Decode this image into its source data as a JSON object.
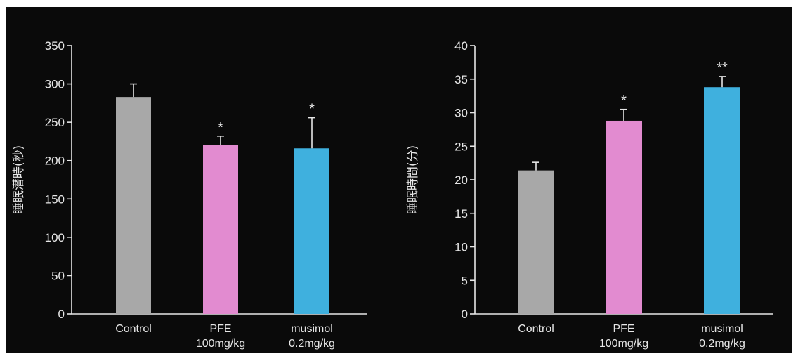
{
  "colors": {
    "background": "#0a0a0a",
    "axis": "#e6e6e6",
    "control": "#a8a8a8",
    "pfe": "#e28bd0",
    "musimol": "#3fb0de"
  },
  "chart_data": [
    {
      "type": "bar",
      "ylabel": "睡眠潜時(秒)",
      "ylim": [
        0,
        350
      ],
      "yticks": [
        0,
        50,
        100,
        150,
        200,
        250,
        300,
        350
      ],
      "categories": [
        {
          "line1": "Control",
          "line2": ""
        },
        {
          "line1": "PFE",
          "line2": "100mg/kg"
        },
        {
          "line1": "musimol",
          "line2": "0.2mg/kg"
        }
      ],
      "values": [
        283,
        220,
        216
      ],
      "error_upper": [
        300,
        232,
        256
      ],
      "significance": [
        "",
        "*",
        "*"
      ],
      "bar_colors": [
        "#a8a8a8",
        "#e28bd0",
        "#3fb0de"
      ],
      "grid": false,
      "legend": "none"
    },
    {
      "type": "bar",
      "ylabel": "睡眠時間(分)",
      "ylim": [
        0,
        40
      ],
      "yticks": [
        0,
        5,
        10,
        15,
        20,
        25,
        30,
        35,
        40
      ],
      "categories": [
        {
          "line1": "Control",
          "line2": ""
        },
        {
          "line1": "PFE",
          "line2": "100mg/kg"
        },
        {
          "line1": "musimol",
          "line2": "0.2mg/kg"
        }
      ],
      "values": [
        21.4,
        28.8,
        33.8
      ],
      "error_upper": [
        22.6,
        30.5,
        35.4
      ],
      "significance": [
        "",
        "*",
        "**"
      ],
      "bar_colors": [
        "#a8a8a8",
        "#e28bd0",
        "#3fb0de"
      ],
      "grid": false,
      "legend": "none"
    }
  ]
}
